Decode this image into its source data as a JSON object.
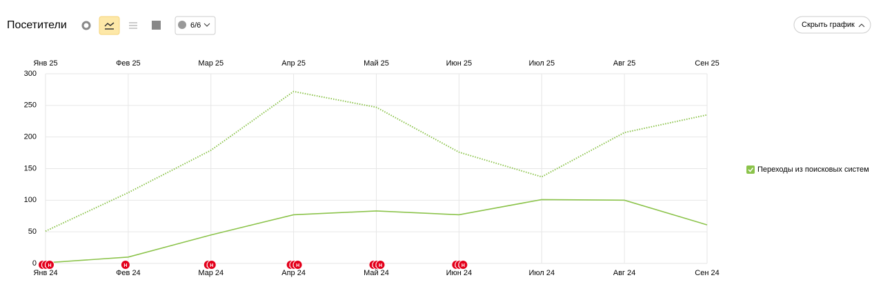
{
  "chart_data": {
    "type": "line",
    "title": "Посетители",
    "filter_label": "6/6",
    "hide_button": "Скрыть график",
    "x": [
      "Янв 24",
      "Фев 24",
      "Мар 24",
      "Апр 24",
      "Май 24",
      "Июн 24",
      "Июл 24",
      "Авг 24",
      "Сен 24"
    ],
    "x2": [
      "Янв 25",
      "Фев 25",
      "Мар 25",
      "Апр 25",
      "Май 25",
      "Июн 25",
      "Июл 25",
      "Авг 25",
      "Сен 25"
    ],
    "ylim": [
      0,
      300
    ],
    "yticks": [
      0,
      50,
      100,
      150,
      200,
      250,
      300
    ],
    "grid": true,
    "series": [
      {
        "name": "Переходы из поисковых систем",
        "color": "#8bc34a",
        "dash": "solid",
        "values": [
          1,
          10,
          45,
          77,
          83,
          77,
          101,
          100,
          61
        ]
      },
      {
        "color": "#8bc34a",
        "dash": "dotted",
        "axis": "x2",
        "values": [
          51,
          112,
          179,
          272,
          247,
          176,
          137,
          207,
          235
        ]
      }
    ],
    "annotation_label": "Н",
    "annotation_counts": [
      3,
      1,
      2,
      3,
      3,
      3,
      0,
      0,
      0
    ]
  }
}
